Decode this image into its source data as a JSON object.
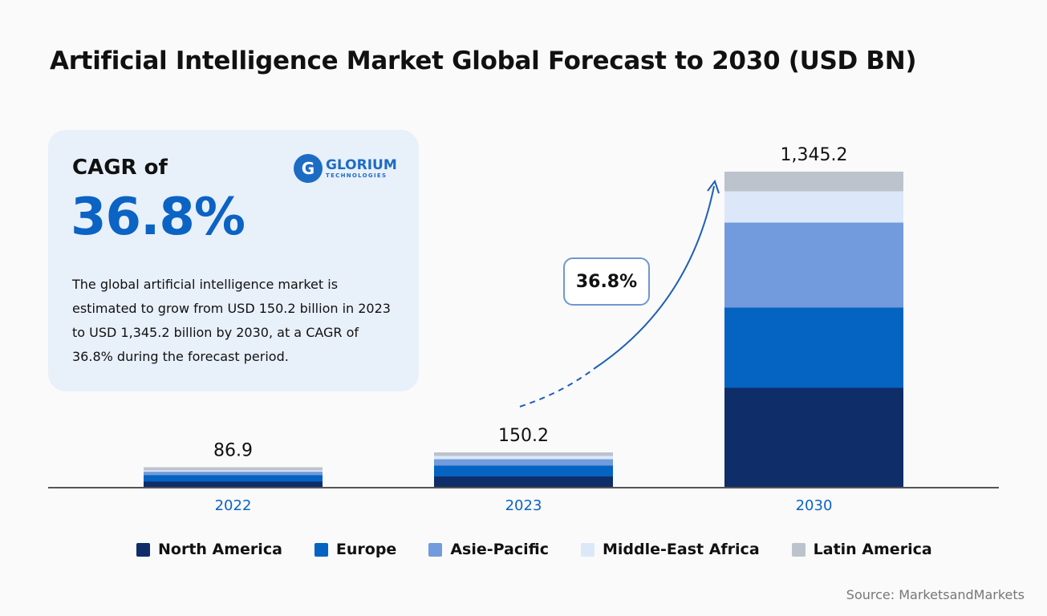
{
  "title": "Artificial Intelligence Market Global Forecast to 2030 (USD BN)",
  "card": {
    "cagr_label": "CAGR of",
    "cagr_value": "36.8%",
    "description": "The global artificial intelligence market is estimated to grow from USD 150.2 billion in 2023 to USD 1,345.2 billion by 2030, at a CAGR of 36.8% during the forecast period."
  },
  "logo": {
    "mark": "G",
    "name": "GLORIUM",
    "sub": "TECHNOLOGIES"
  },
  "growth_bubble": "36.8%",
  "source": "Source: MarketsandMarkets",
  "chart_data": {
    "type": "bar",
    "stacked": true,
    "title": "Artificial Intelligence Market Global Forecast to 2030 (USD BN)",
    "categories": [
      "2022",
      "2023",
      "2030"
    ],
    "totals": [
      "86.9",
      "150.2",
      "1,345.2"
    ],
    "series": [
      {
        "name": "North America",
        "color": "#0f2d69",
        "values": [
          27.5,
          49.1,
          426.8
        ]
      },
      {
        "name": "Europe",
        "color": "#0563c1",
        "values": [
          27.5,
          46.4,
          341.4
        ]
      },
      {
        "name": "Asie-Pacific",
        "color": "#719bdc",
        "values": [
          14.5,
          27.3,
          361.9
        ]
      },
      {
        "name": "Middle-East Africa",
        "color": "#dce8fa",
        "values": [
          5.8,
          13.7,
          133.1
        ]
      },
      {
        "name": "Latin America",
        "color": "#bcc3cd",
        "values": [
          11.6,
          13.7,
          82.0
        ]
      }
    ],
    "legend": "bottom",
    "grid": false
  }
}
